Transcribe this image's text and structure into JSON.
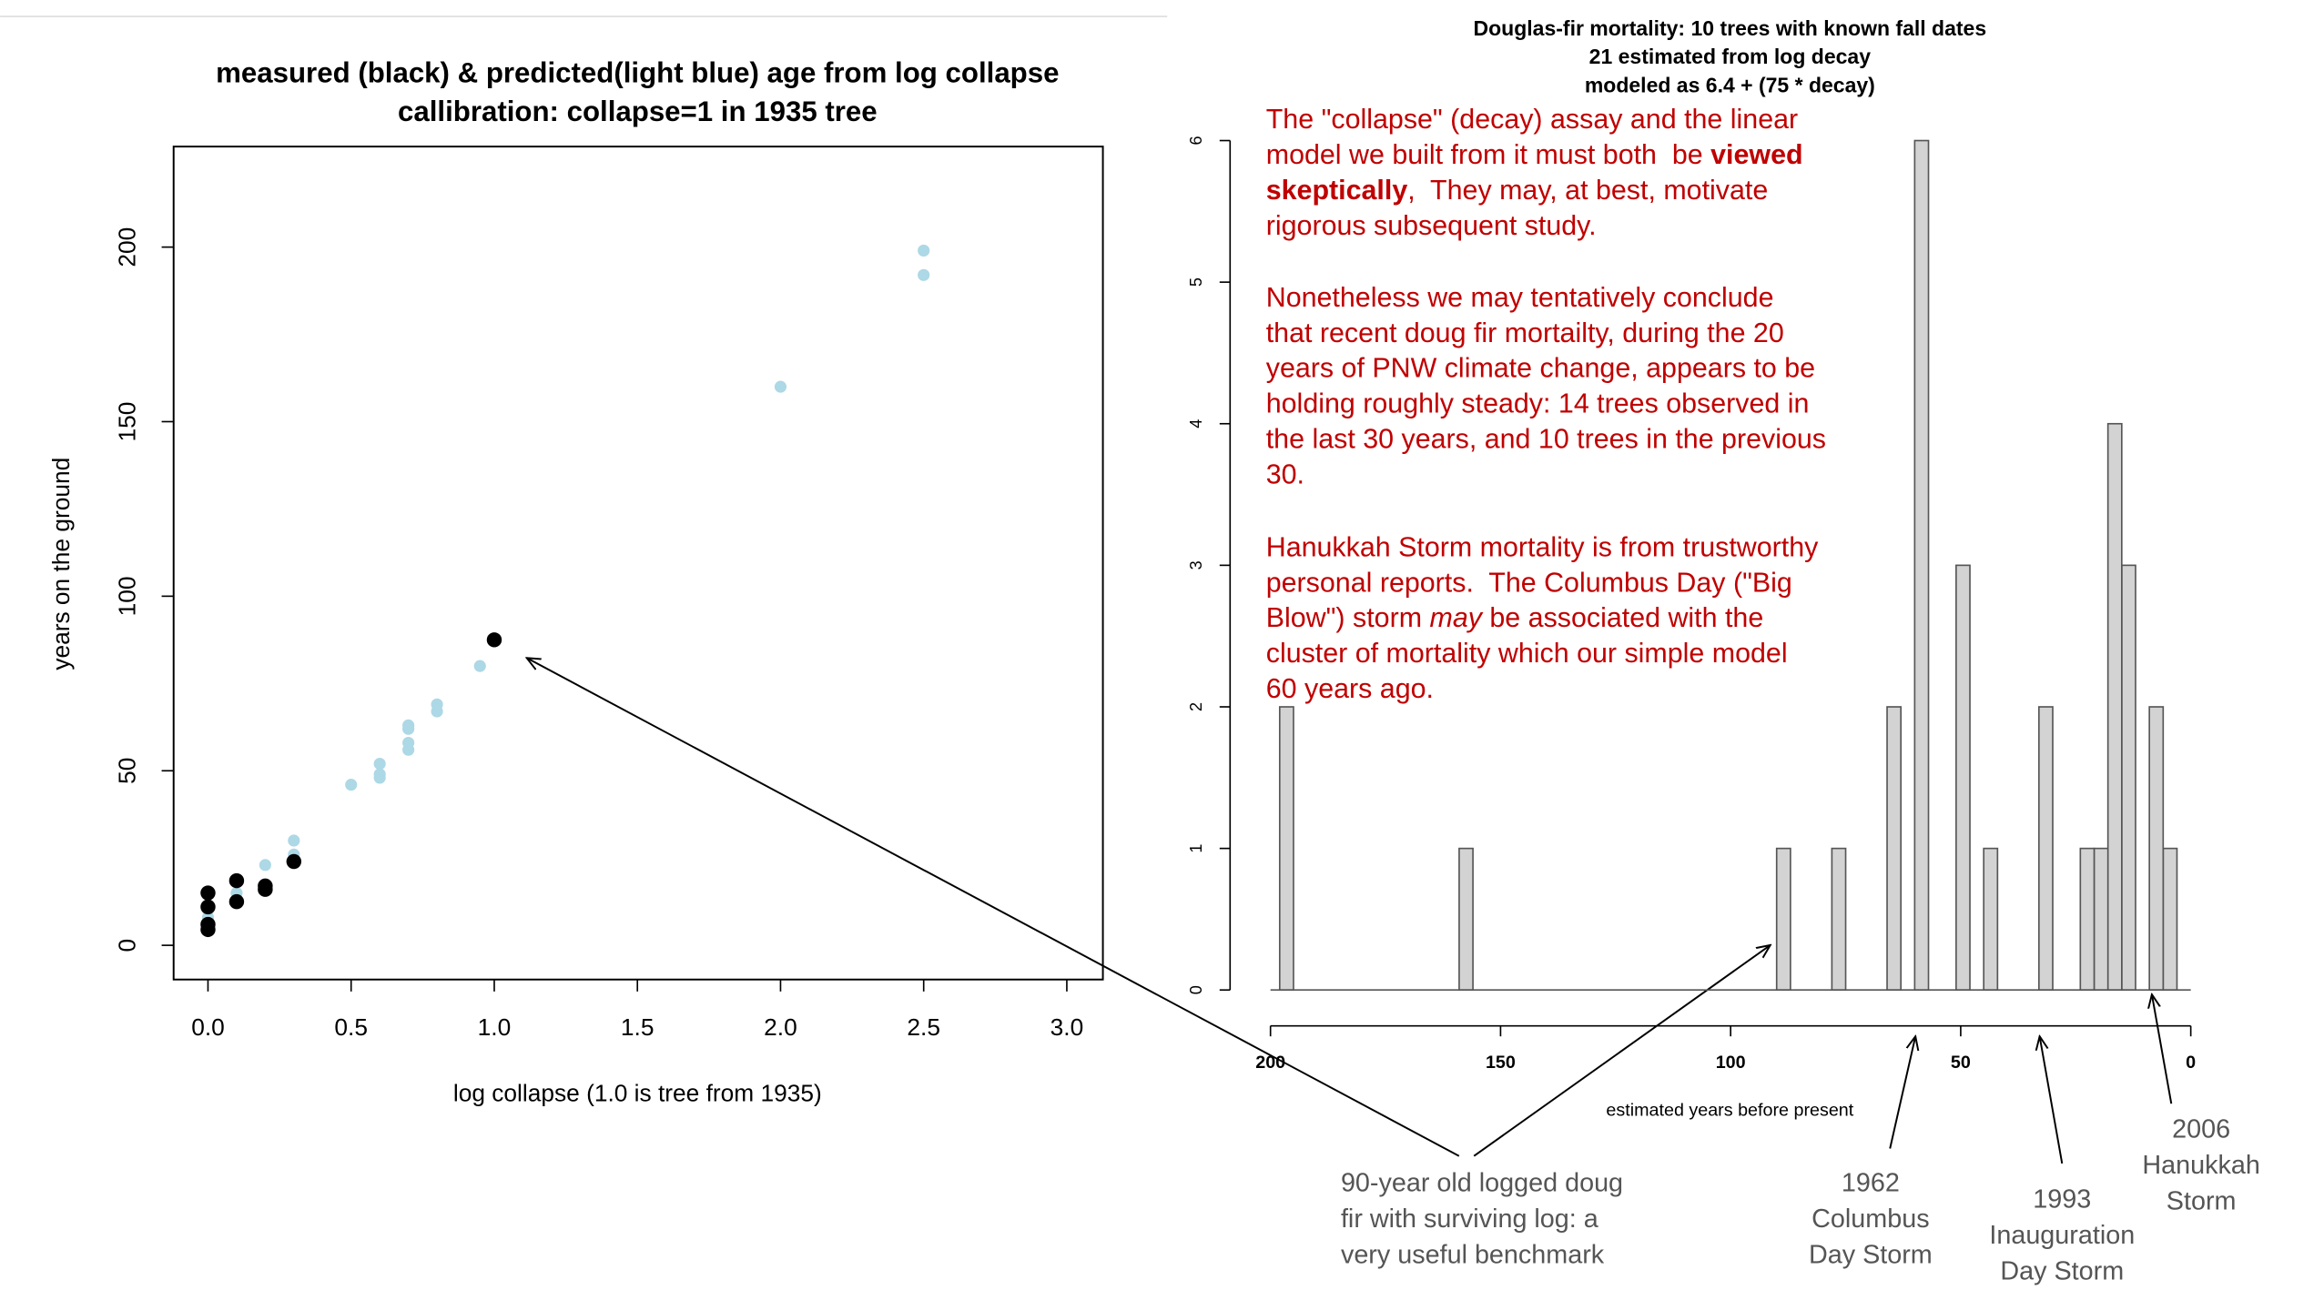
{
  "chart_data": [
    {
      "type": "scatter",
      "title": [
        "measured (black) & predicted(light blue) age from log collapse",
        "callibration: collapse=1 in 1935 tree"
      ],
      "xlabel": "log collapse (1.0 is tree from 1935)",
      "ylabel": "years on the ground",
      "xlim": [
        -0.12,
        3.126
      ],
      "ylim": [
        -9.8,
        228.8
      ],
      "xticks": [
        {
          "value": 0,
          "label": "0.0"
        },
        0.5,
        {
          "value": 1,
          "label": "1.0"
        },
        1.5,
        {
          "value": 2,
          "label": "2.0"
        },
        2.5,
        {
          "value": 3,
          "label": "3.0"
        }
      ],
      "yticks": [
        0,
        50,
        100,
        150,
        200
      ],
      "series": [
        {
          "color": "#add8e6",
          "x": [
            0,
            0,
            0.1,
            0.1,
            0.2,
            0.3,
            0.3,
            0.5,
            0.6,
            0.6,
            0.6,
            0.7,
            0.7,
            0.7,
            0.7,
            0.8,
            0.8,
            0.95,
            2.0,
            2.5,
            2.5
          ],
          "values": [
            6,
            8,
            13,
            15,
            23,
            26,
            30,
            46,
            48,
            49,
            52,
            56,
            58,
            62,
            63,
            67,
            69,
            80,
            160,
            192,
            199
          ]
        },
        {
          "color": "#000000",
          "x": [
            0,
            0,
            0,
            0,
            0.1,
            0.1,
            0.2,
            0.2,
            0.3,
            1.0
          ],
          "values": [
            4.5,
            6,
            11,
            15,
            12.5,
            18.5,
            16,
            17,
            24,
            87.5
          ]
        }
      ]
    },
    {
      "type": "histogram",
      "title": [
        "Douglas-fir mortality: 10 trees with known fall dates",
        "21 estimated from log decay",
        "modeled as 6.4 + (75 * decay)"
      ],
      "xlabel": "estimated years before present",
      "xlim": [
        200,
        0
      ],
      "ylim": [
        0,
        6
      ],
      "xticks": [
        200,
        150,
        100,
        50,
        0
      ],
      "yticks": [
        0,
        1,
        2,
        3,
        4,
        5,
        6
      ],
      "color": "#d3d3d3",
      "bins": [
        0,
        3,
        6,
        9,
        12,
        15,
        18,
        21,
        24,
        27,
        30,
        33,
        36,
        39,
        42,
        45,
        48,
        51,
        54,
        57,
        60,
        63,
        66,
        69,
        72,
        75,
        78,
        81,
        84,
        87,
        90,
        93,
        96,
        99,
        102,
        105,
        108,
        111,
        114,
        117,
        120,
        123,
        126,
        129,
        132,
        135,
        138,
        141,
        144,
        147,
        150,
        153,
        156,
        159,
        162,
        165,
        168,
        171,
        174,
        177,
        180,
        183,
        186,
        189,
        192,
        195,
        198
      ],
      "counts": [
        0,
        1,
        2,
        0,
        3,
        4,
        1,
        1,
        0,
        0,
        2,
        0,
        0,
        0,
        1,
        0,
        3,
        0,
        0,
        6,
        0,
        2,
        0,
        0,
        0,
        1,
        0,
        0,
        0,
        1,
        0,
        0,
        0,
        0,
        0,
        0,
        0,
        0,
        0,
        0,
        0,
        0,
        0,
        0,
        0,
        0,
        0,
        0,
        0,
        0,
        0,
        0,
        1,
        0,
        0,
        0,
        0,
        0,
        0,
        0,
        0,
        0,
        0,
        0,
        0,
        2
      ]
    }
  ],
  "annotations": {
    "commentary": [
      [
        "The \"collapse\" (decay) assay and the linear",
        [
          {
            "text": "model we built from it must both  be "
          },
          {
            "text": "viewed",
            "weight": "bold"
          }
        ],
        [
          {
            "text": "skeptically",
            "weight": "bold"
          },
          {
            "text": ",  They may, at best, motivate"
          }
        ],
        "rigorous subsequent study."
      ],
      [
        "Nonetheless we may tentatively conclude",
        "that recent doug fir mortailty, during the 20",
        "years of PNW climate change, appears to be",
        "holding roughly steady: 14 trees observed in",
        "the last 30 years, and 10 trees in the previous",
        "30."
      ],
      [
        "Hanukkah Storm mortality is from trustworthy",
        "personal reports.  The Columbus Day (\"Big",
        [
          {
            "text": "Blow\") storm "
          },
          {
            "text": "may",
            "style": "italic"
          },
          {
            "text": " be associated with the"
          }
        ],
        "cluster of mortality which our simple model",
        "60 years ago."
      ]
    ],
    "benchmark": [
      "90-year old logged doug",
      "fir with surviving log: a",
      "very useful benchmark"
    ],
    "storms": [
      [
        "1962",
        "Columbus",
        "Day Storm"
      ],
      [
        "1993",
        "Inauguration",
        "Day Storm"
      ],
      [
        "2006",
        "Hanukkah",
        "Storm"
      ]
    ]
  }
}
